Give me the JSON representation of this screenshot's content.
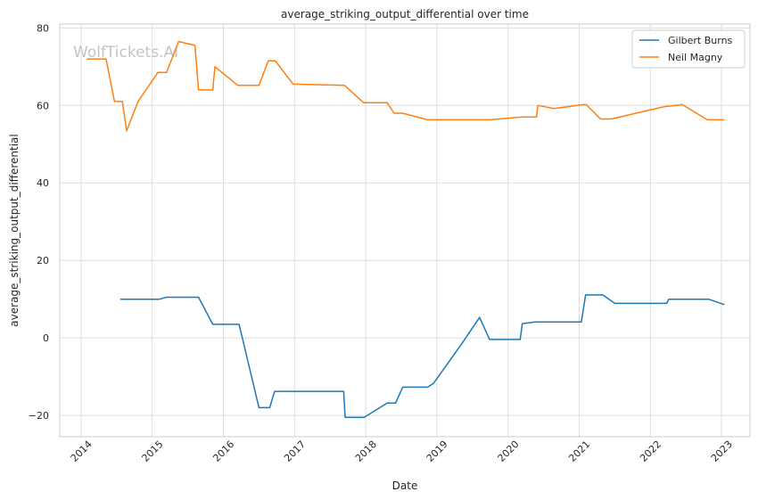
{
  "chart_data": {
    "type": "line",
    "title": "average_striking_output_differential over time",
    "xlabel": "Date",
    "ylabel": "average_striking_output_differential",
    "watermark": "WolfTickets.AI",
    "xlim": [
      2013.7,
      2023.4
    ],
    "ylim": [
      -25.5,
      81
    ],
    "x_ticks": [
      2014,
      2015,
      2016,
      2017,
      2018,
      2019,
      2020,
      2021,
      2022,
      2023
    ],
    "x_tick_labels": [
      "2014",
      "2015",
      "2016",
      "2017",
      "2018",
      "2019",
      "2020",
      "2021",
      "2022",
      "2023"
    ],
    "y_ticks": [
      -20,
      0,
      20,
      40,
      60,
      80
    ],
    "y_tick_labels": [
      "−20",
      "0",
      "20",
      "40",
      "60",
      "80"
    ],
    "grid": true,
    "legend_position": "top-right",
    "series": [
      {
        "name": "Gilbert Burns",
        "color": "#1f77b4",
        "x": [
          2014.55,
          2015.1,
          2015.2,
          2015.65,
          2015.85,
          2016.22,
          2016.5,
          2016.65,
          2016.72,
          2017.69,
          2017.71,
          2017.98,
          2018.3,
          2018.42,
          2018.52,
          2018.87,
          2018.95,
          2019.35,
          2019.6,
          2019.74,
          2020.17,
          2020.2,
          2020.38,
          2021.03,
          2021.09,
          2021.33,
          2021.5,
          2022.23,
          2022.26,
          2022.82,
          2023.04
        ],
        "y": [
          10,
          10,
          10.5,
          10.5,
          3.5,
          3.5,
          -18,
          -18,
          -13.8,
          -13.8,
          -20.5,
          -20.5,
          -16.8,
          -16.8,
          -12.7,
          -12.7,
          -11.8,
          -1.5,
          5.3,
          -0.4,
          -0.4,
          3.7,
          4.1,
          4.1,
          11.1,
          11.1,
          8.9,
          8.9,
          10,
          10,
          8.6
        ]
      },
      {
        "name": "Neil Magny",
        "color": "#ff7f0e",
        "x": [
          2014.08,
          2014.35,
          2014.47,
          2014.58,
          2014.64,
          2014.8,
          2015.08,
          2015.2,
          2015.37,
          2015.6,
          2015.65,
          2015.85,
          2015.88,
          2016.2,
          2016.5,
          2016.63,
          2016.73,
          2016.98,
          2017.7,
          2017.97,
          2018.3,
          2018.4,
          2018.52,
          2018.87,
          2019.75,
          2020.2,
          2020.4,
          2020.42,
          2020.65,
          2021.05,
          2021.1,
          2021.3,
          2021.45,
          2022.2,
          2022.45,
          2022.8,
          2023.04
        ],
        "y": [
          72,
          72,
          61,
          61,
          53.5,
          61,
          68.5,
          68.5,
          76.5,
          75.5,
          64,
          64,
          70,
          65.2,
          65.2,
          71.5,
          71.5,
          65.5,
          65.2,
          60.7,
          60.7,
          58,
          58,
          56.3,
          56.3,
          57,
          57,
          60,
          59.2,
          60.2,
          60.2,
          56.5,
          56.5,
          59.7,
          60.2,
          56.3,
          56.3
        ]
      }
    ]
  }
}
